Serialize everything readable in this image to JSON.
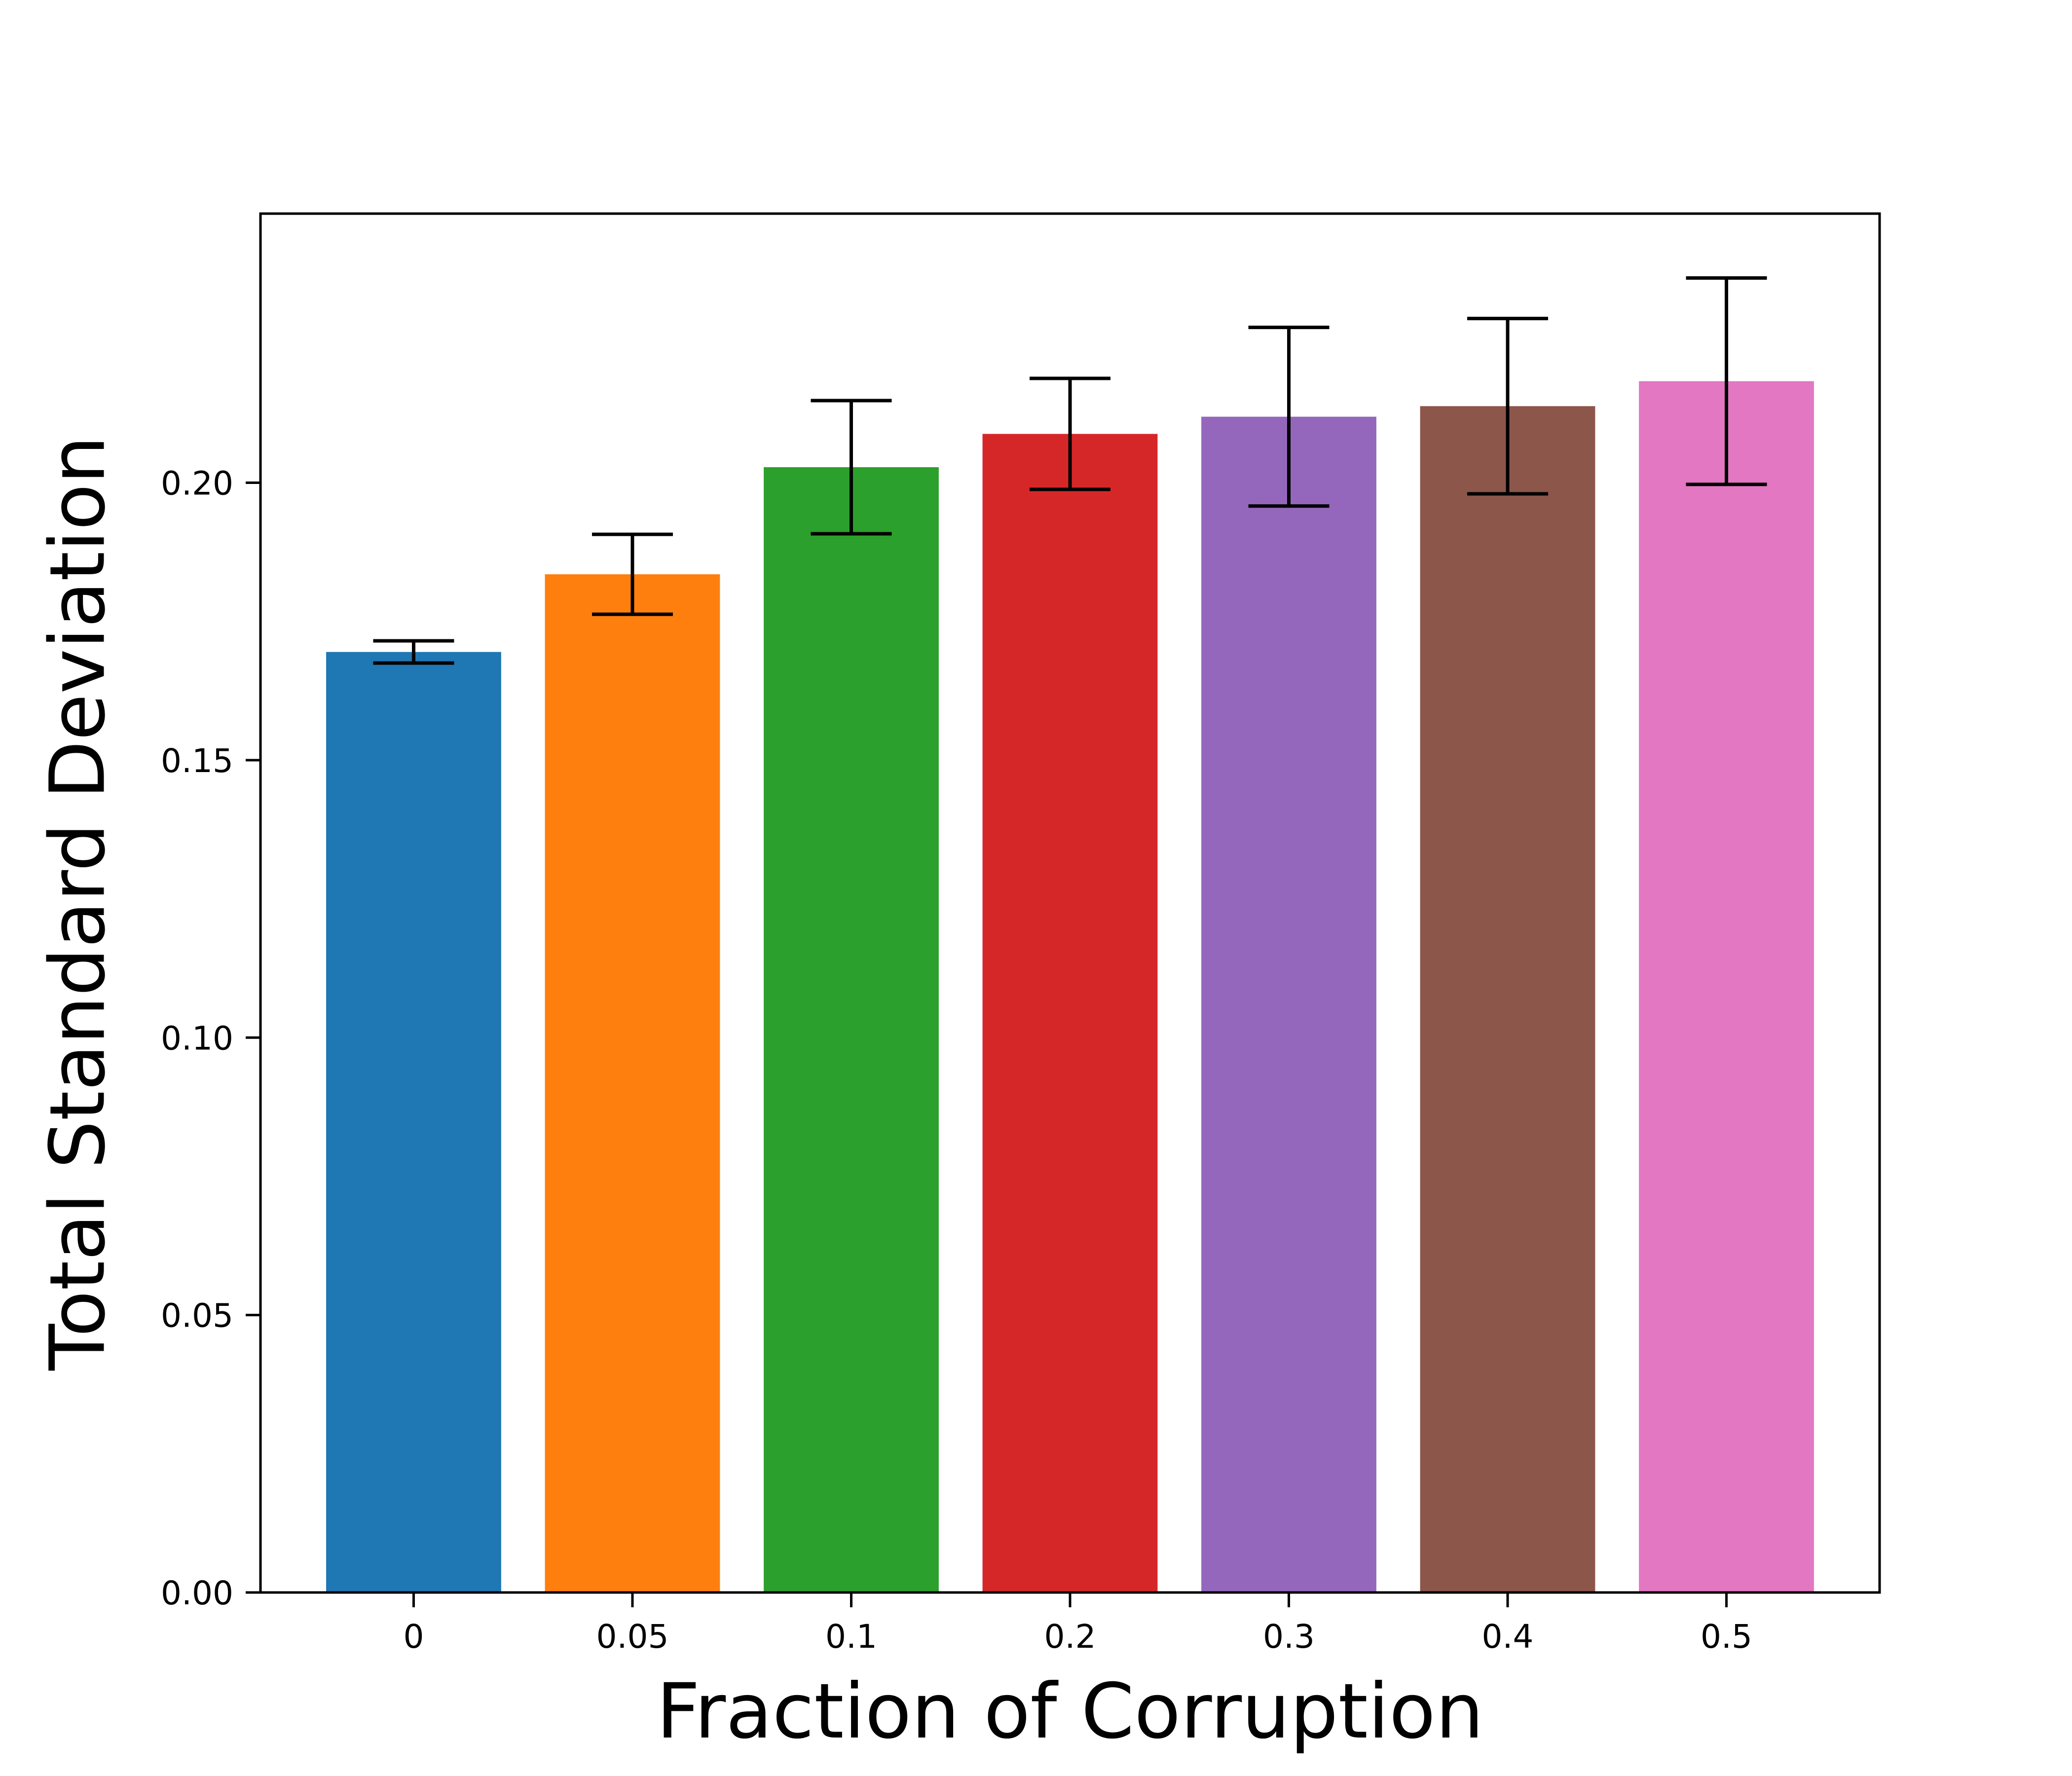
{
  "chart_data": {
    "type": "bar",
    "title": "",
    "xlabel": "Fraction of Corruption",
    "ylabel": "Total Standard Deviation",
    "categories": [
      "0",
      "0.05",
      "0.1",
      "0.2",
      "0.3",
      "0.4",
      "0.5"
    ],
    "values": [
      0.1695,
      0.1835,
      0.2028,
      0.2088,
      0.2119,
      0.2138,
      0.2183
    ],
    "errors": [
      0.002,
      0.0072,
      0.012,
      0.01,
      0.0161,
      0.0158,
      0.0186
    ],
    "colors": [
      "#1f77b4",
      "#ff7f0e",
      "#2ca02c",
      "#d62728",
      "#9467bd",
      "#8c564b",
      "#e377c2"
    ],
    "ylim": [
      0,
      0.2485
    ],
    "yticks": [
      0.0,
      0.05,
      0.1,
      0.15,
      0.2
    ],
    "ytick_labels": [
      "0.00",
      "0.05",
      "0.10",
      "0.15",
      "0.20"
    ],
    "grid": false,
    "legend": "none"
  }
}
